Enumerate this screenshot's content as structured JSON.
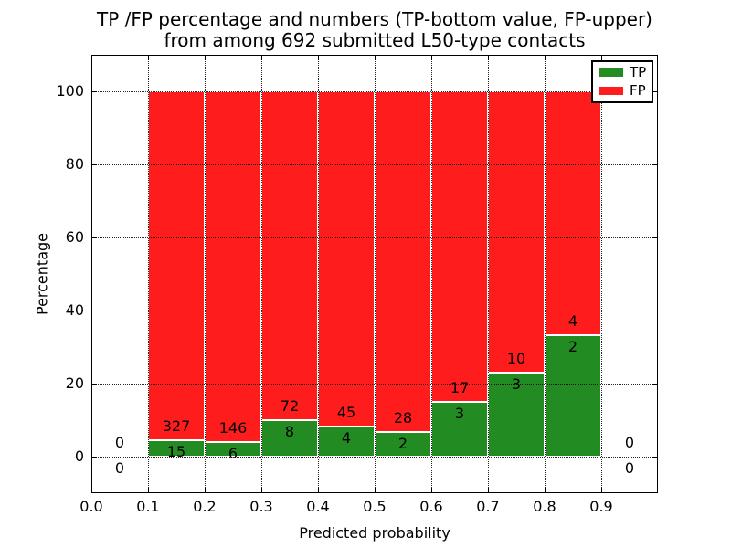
{
  "figure": {
    "background": "#ffffff",
    "text_color": "#000000"
  },
  "chart_data": {
    "type": "bar",
    "stacked": true,
    "normalized_to_percent": 100,
    "title": "TP /FP percentage and numbers (TP-bottom value, FP-upper) from among 692 submitted L50-type contacts",
    "title_line1": "TP /FP percentage and numbers (TP-bottom value, FP-upper)",
    "title_line2": "from among 692 submitted L50-type contacts",
    "xlabel": "Predicted probability",
    "ylabel": "Percentage",
    "xlim": [
      0.0,
      1.0
    ],
    "ylim": [
      -10,
      110
    ],
    "xtick_labels": [
      "0.0",
      "0.1",
      "0.2",
      "0.3",
      "0.4",
      "0.5",
      "0.6",
      "0.7",
      "0.8",
      "0.9"
    ],
    "xtick_values": [
      0.0,
      0.1,
      0.2,
      0.3,
      0.4,
      0.5,
      0.6,
      0.7,
      0.8,
      0.9
    ],
    "ytick_labels": [
      "0",
      "20",
      "40",
      "60",
      "80",
      "100"
    ],
    "ytick_values": [
      0,
      20,
      40,
      60,
      80,
      100
    ],
    "grid": {
      "enabled": true,
      "style": "dotted",
      "color": "#000000"
    },
    "bin_edges": [
      0.0,
      0.1,
      0.2,
      0.3,
      0.4,
      0.5,
      0.6,
      0.7,
      0.8,
      0.9,
      1.0
    ],
    "series": [
      {
        "name": "TP",
        "color": "#228b22",
        "counts": [
          0,
          15,
          6,
          8,
          4,
          2,
          3,
          3,
          2,
          0
        ]
      },
      {
        "name": "FP",
        "color": "#ff1c1c",
        "counts": [
          0,
          327,
          146,
          72,
          45,
          28,
          17,
          10,
          4,
          0
        ]
      }
    ],
    "tp_percent_of_bin": [
      0,
      4.39,
      3.95,
      10.0,
      8.16,
      6.67,
      15.0,
      23.08,
      33.33,
      0
    ],
    "total_submitted": 692,
    "legend": {
      "position": "upper-right",
      "entries": [
        {
          "label": "TP",
          "color": "#228b22"
        },
        {
          "label": "FP",
          "color": "#ff1c1c"
        }
      ]
    },
    "bar_edge_color": "#ffffff"
  }
}
